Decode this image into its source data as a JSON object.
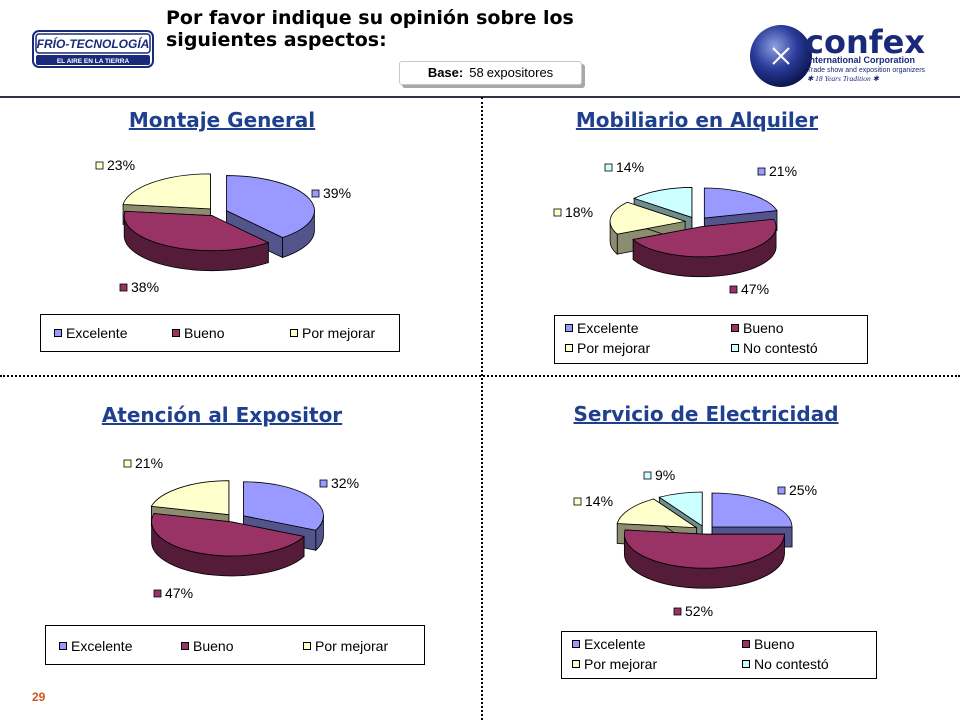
{
  "header": {
    "title_line1": "Por favor indique su opinión sobre los",
    "title_line2": "siguientes aspectos:",
    "base_label": "Base:",
    "base_value": "58",
    "base_unit": "expositores"
  },
  "logo_left": {
    "line1": "FRÍO-TECNOLOGÍA",
    "line2": "EL AIRE EN LA TIERRA"
  },
  "logo_right": {
    "brand": "confex",
    "line1": "International Corporation",
    "line2": "Trade show and exposition organizers",
    "line3": "18 Years Tradition"
  },
  "page_number": "29",
  "colors": {
    "Excelente": "#9999ff",
    "Bueno": "#993366",
    "Por mejorar": "#ffffcc",
    "No contestó": "#ccffff",
    "title": "#1f3f8f",
    "page_number": "#d0541c"
  },
  "chart_data": [
    {
      "type": "pie",
      "title": "Montaje General",
      "categories": [
        "Excelente",
        "Bueno",
        "Por mejorar"
      ],
      "values": [
        39,
        38,
        23
      ],
      "data_labels": [
        "39%",
        "38%",
        "23%"
      ],
      "exploded": true,
      "legend": "bottom"
    },
    {
      "type": "pie",
      "title": "Mobiliario en Alquiler",
      "categories": [
        "Excelente",
        "Bueno",
        "Por mejorar",
        "No contestó"
      ],
      "values": [
        21,
        47,
        18,
        14
      ],
      "data_labels": [
        "21%",
        "47%",
        "18%",
        "14%"
      ],
      "exploded": true,
      "legend": "bottom"
    },
    {
      "type": "pie",
      "title": "Atención al Expositor",
      "categories": [
        "Excelente",
        "Bueno",
        "Por mejorar"
      ],
      "values": [
        32,
        47,
        21
      ],
      "data_labels": [
        "32%",
        "47%",
        "21%"
      ],
      "exploded": true,
      "legend": "bottom"
    },
    {
      "type": "pie",
      "title": "Servicio de Electricidad",
      "categories": [
        "Excelente",
        "Bueno",
        "Por mejorar",
        "No contestó"
      ],
      "values": [
        25,
        52,
        14,
        9
      ],
      "data_labels": [
        "25%",
        "52%",
        "14%",
        "9%"
      ],
      "exploded": true,
      "legend": "bottom"
    }
  ]
}
